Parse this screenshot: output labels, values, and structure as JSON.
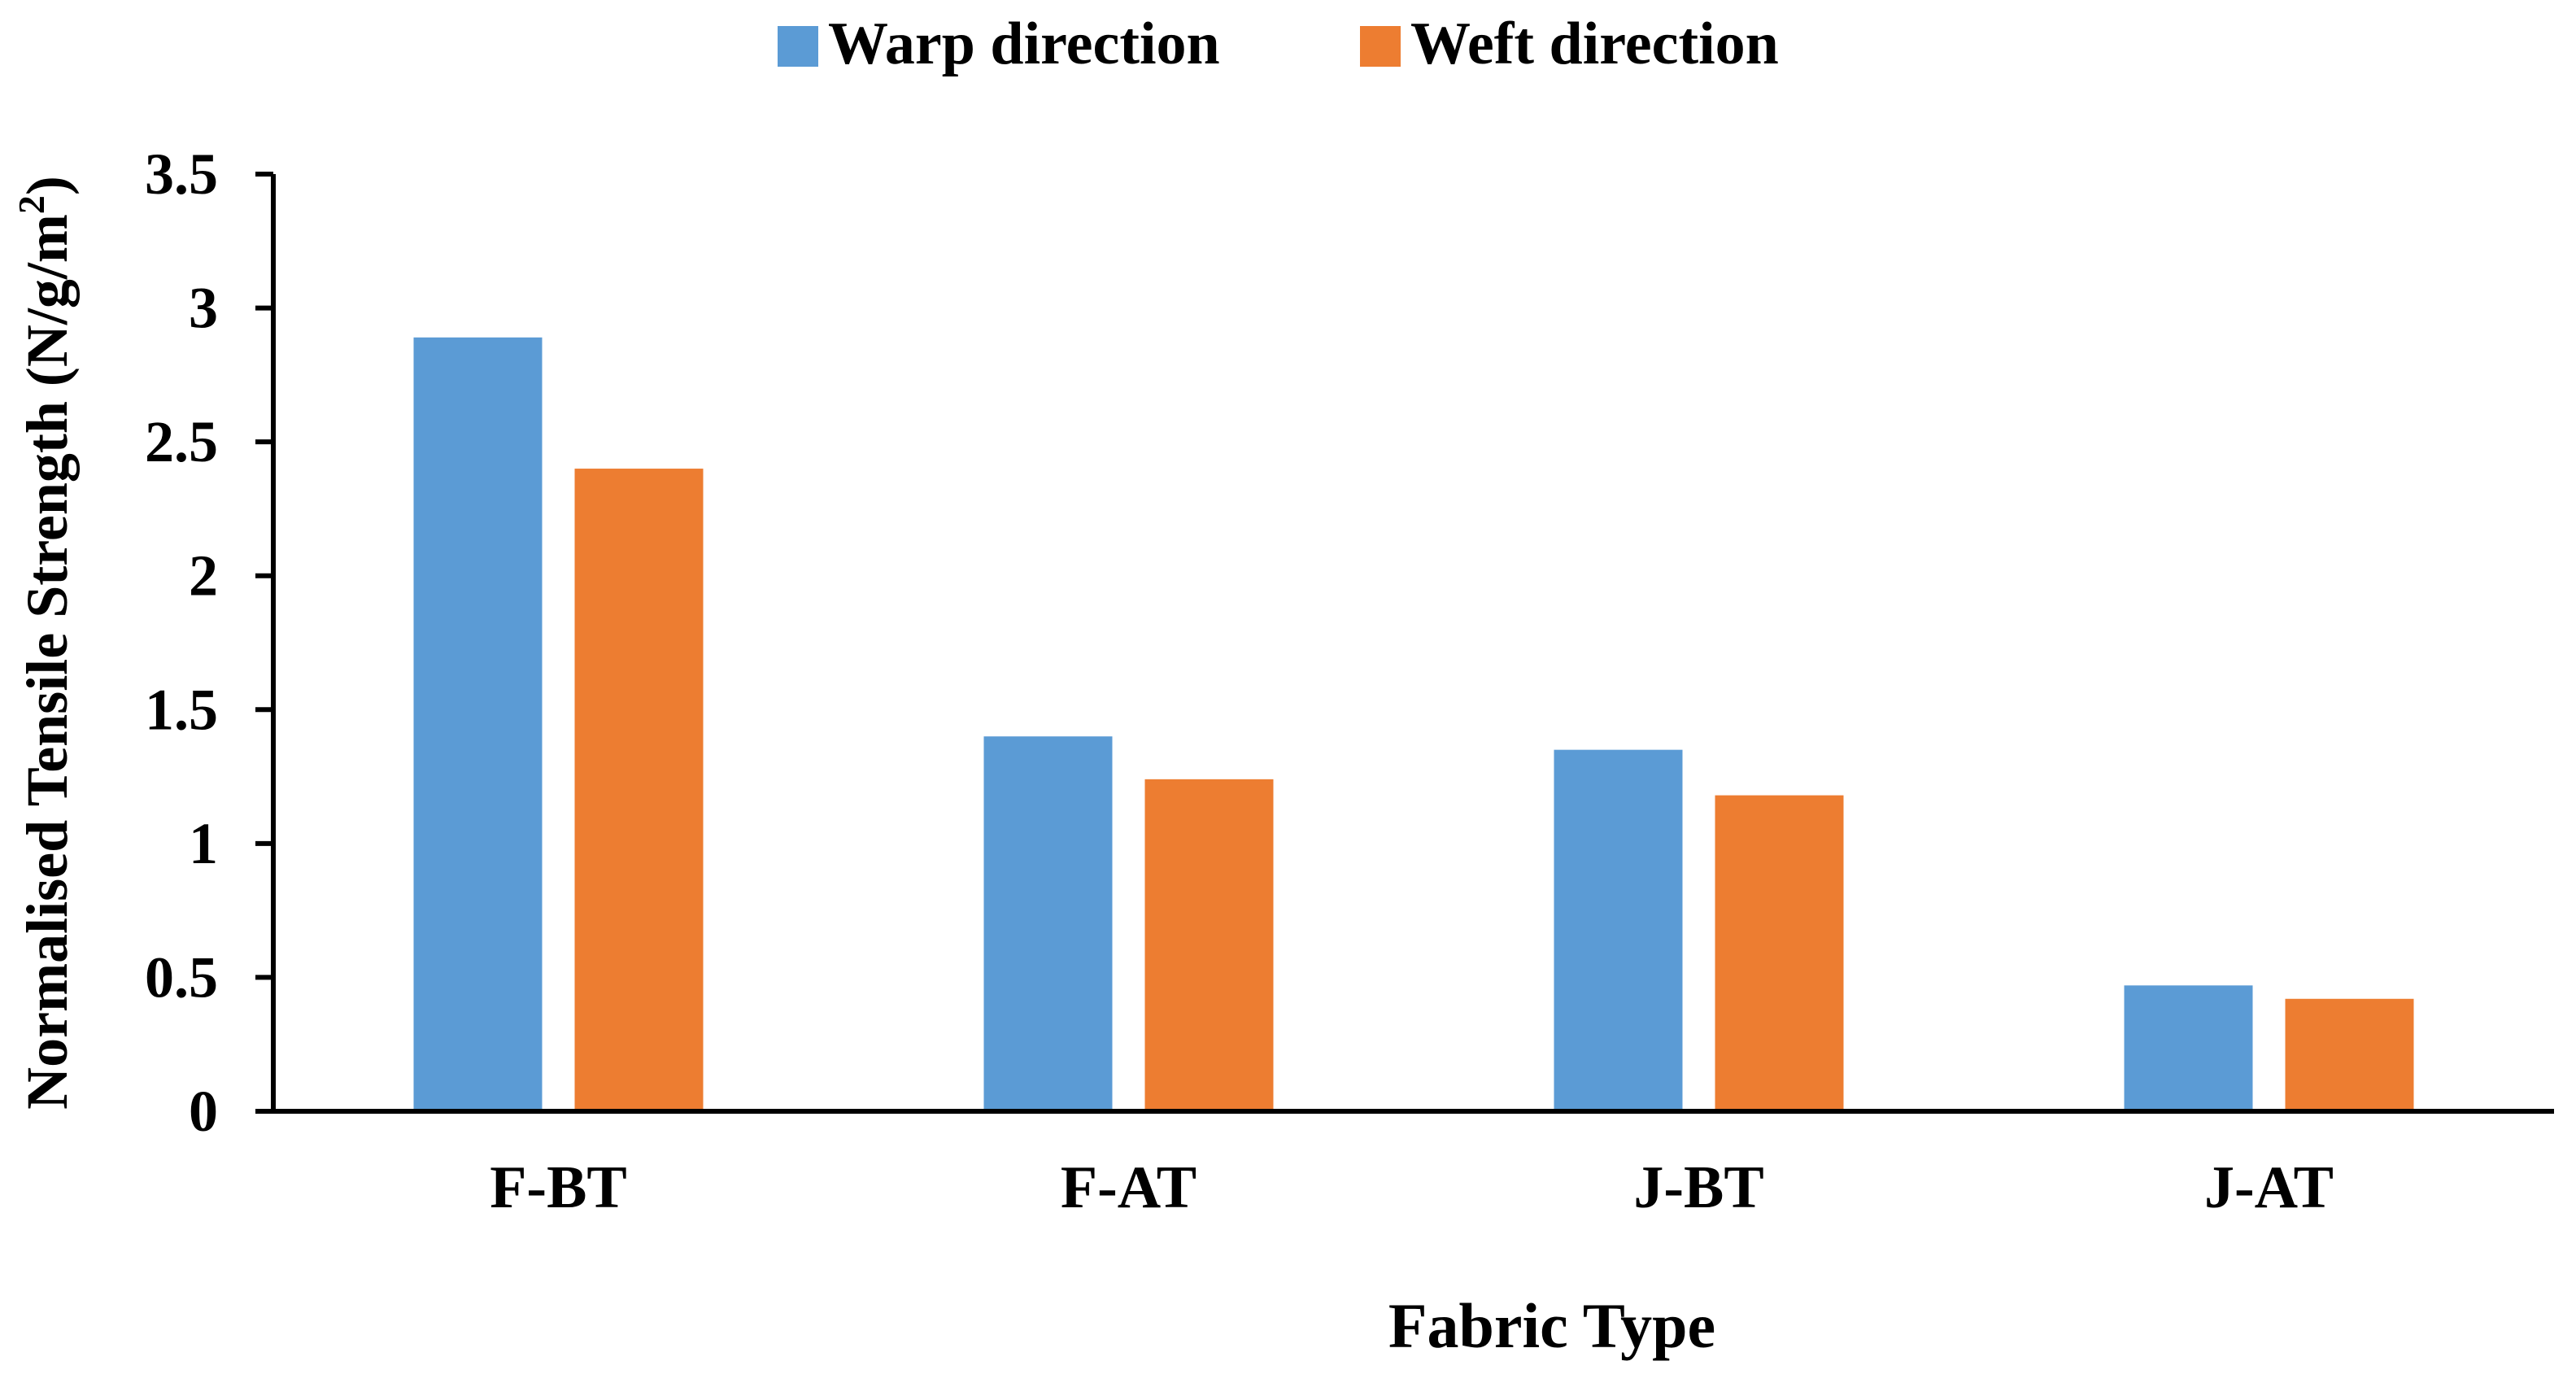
{
  "chart_data": {
    "type": "bar",
    "title": "",
    "xlabel": "Fabric Type",
    "ylabel": "Normalised Tensile Strength (N/g/m",
    "ylabel_superscript": "2",
    "ylabel_suffix": ")",
    "categories": [
      "F-BT",
      "F-AT",
      "J-BT",
      "J-AT"
    ],
    "series": [
      {
        "name": "Warp direction",
        "color": "#5B9BD5",
        "values": [
          2.89,
          1.4,
          1.35,
          0.47
        ]
      },
      {
        "name": "Weft direction",
        "color": "#ED7D31",
        "values": [
          2.4,
          1.24,
          1.18,
          0.42
        ]
      }
    ],
    "ylim": [
      0,
      3.5
    ],
    "yticks": [
      "0",
      "0.5",
      "1",
      "1.5",
      "2",
      "2.5",
      "3",
      "3.5"
    ],
    "grid": false,
    "legend_position": "top-center"
  }
}
